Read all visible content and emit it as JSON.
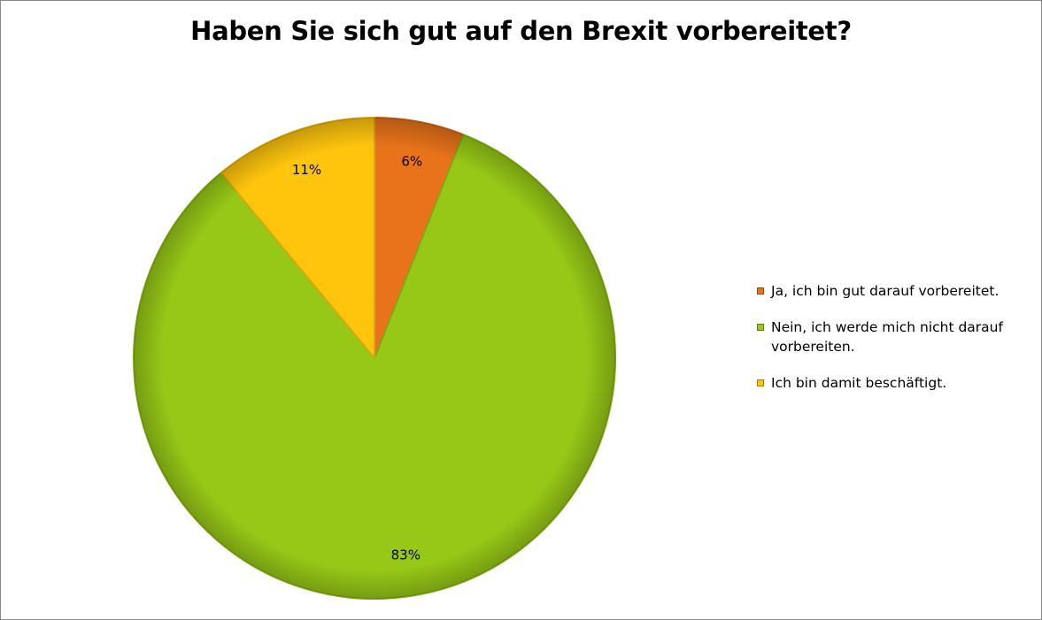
{
  "chart_data": {
    "type": "pie",
    "title": "Haben Sie sich gut auf den Brexit vorbereitet?",
    "start_angle_deg": 0,
    "direction": "clockwise",
    "legend_position": "right",
    "slices": [
      {
        "label": "Ja, ich bin gut darauf vorbereitet.",
        "value": 6,
        "value_label": "6%",
        "color": "#E8731A"
      },
      {
        "label": "Nein, ich werde mich nicht darauf vorbereiten.",
        "value": 83,
        "value_label": "83%",
        "color": "#97C817"
      },
      {
        "label": "Ich bin damit beschäftigt.",
        "value": 11,
        "value_label": "11%",
        "color": "#FFC50D"
      }
    ]
  }
}
